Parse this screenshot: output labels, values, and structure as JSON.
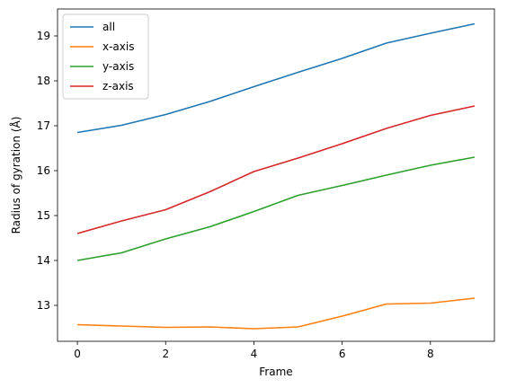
{
  "chart_data": {
    "type": "line",
    "title": "",
    "xlabel": "Frame",
    "ylabel": "Radius of gyration (Å)",
    "x": [
      0,
      1,
      2,
      3,
      4,
      5,
      6,
      7,
      8,
      9
    ],
    "xlim": [
      -0.45,
      9.45
    ],
    "ylim": [
      12.2,
      19.6
    ],
    "xticks": [
      0,
      2,
      4,
      6,
      8
    ],
    "yticks": [
      13,
      14,
      15,
      16,
      17,
      18,
      19
    ],
    "grid": false,
    "legend_position": "upper-left",
    "series": [
      {
        "name": "all",
        "color": "#1f77b4",
        "values": [
          16.85,
          17.01,
          17.25,
          17.54,
          17.87,
          18.19,
          18.5,
          18.84,
          19.06,
          19.27
        ]
      },
      {
        "name": "x-axis",
        "color": "#ff7f0e",
        "values": [
          12.57,
          12.54,
          12.51,
          12.52,
          12.48,
          12.52,
          12.76,
          13.03,
          13.05,
          13.16
        ]
      },
      {
        "name": "y-axis",
        "color": "#2ca02c",
        "values": [
          14.0,
          14.17,
          14.48,
          14.75,
          15.09,
          15.45,
          15.67,
          15.9,
          16.12,
          16.3
        ]
      },
      {
        "name": "z-axis",
        "color": "#d62728",
        "values": [
          14.6,
          14.88,
          15.13,
          15.53,
          15.98,
          16.28,
          16.6,
          16.94,
          17.23,
          17.44
        ]
      }
    ]
  }
}
